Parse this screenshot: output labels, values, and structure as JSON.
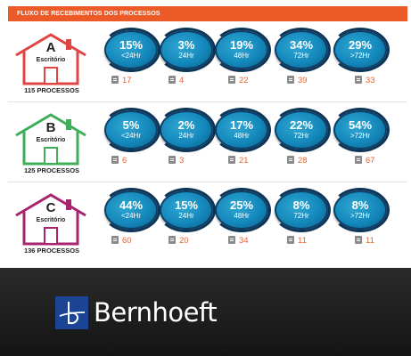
{
  "header": {
    "title": "FLUXO DE RECEBIMENTOS DOS PROCESSOS"
  },
  "rows": [
    {
      "letter": "A",
      "office": "Escritório",
      "processes": "115 PROCESSOS",
      "color": "#e04545",
      "items": [
        {
          "pct": "15%",
          "range": "<24Hr",
          "count": "17"
        },
        {
          "pct": "3%",
          "range": "24Hr",
          "count": "4"
        },
        {
          "pct": "19%",
          "range": "48Hr",
          "count": "22"
        },
        {
          "pct": "34%",
          "range": "72Hr",
          "count": "39"
        },
        {
          "pct": "29%",
          "range": ">72Hr",
          "count": "33"
        }
      ]
    },
    {
      "letter": "B",
      "office": "Escritório",
      "processes": "125 PROCESSOS",
      "color": "#3fae58",
      "items": [
        {
          "pct": "5%",
          "range": "<24Hr",
          "count": "6"
        },
        {
          "pct": "2%",
          "range": "24Hr",
          "count": "3"
        },
        {
          "pct": "17%",
          "range": "48Hr",
          "count": "21"
        },
        {
          "pct": "22%",
          "range": "72Hr",
          "count": "28"
        },
        {
          "pct": "54%",
          "range": ">72Hr",
          "count": "67"
        }
      ]
    },
    {
      "letter": "C",
      "office": "Escritório",
      "processes": "136 PROCESSOS",
      "color": "#a8236e",
      "items": [
        {
          "pct": "44%",
          "range": "<24Hr",
          "count": "60"
        },
        {
          "pct": "15%",
          "range": "24Hr",
          "count": "20"
        },
        {
          "pct": "25%",
          "range": "48Hr",
          "count": "34"
        },
        {
          "pct": "8%",
          "range": "72Hr",
          "count": "11"
        },
        {
          "pct": "8%",
          "range": ">72Hr",
          "count": "11"
        }
      ]
    }
  ],
  "icons": {
    "house": "house-icon",
    "document": "document-icon",
    "logo": "bernhoeft-logo-icon"
  },
  "footer": {
    "brand": "Bernhoeft"
  }
}
